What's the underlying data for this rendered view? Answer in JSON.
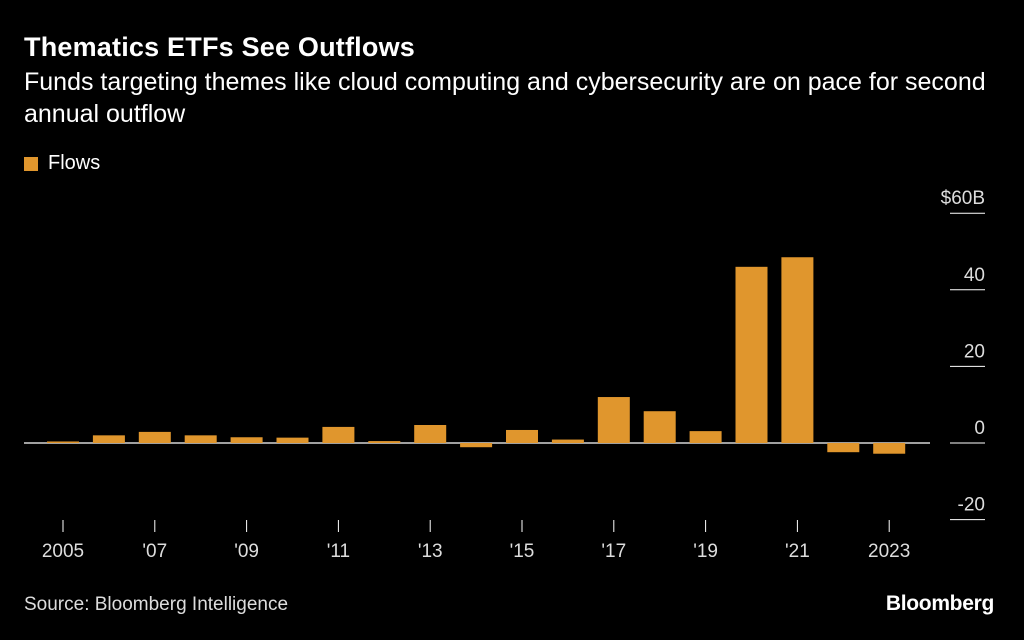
{
  "title": "Thematics ETFs See Outflows",
  "subtitle": "Funds targeting themes like cloud computing and cybersecurity are on pace for second annual outflow",
  "legend": {
    "label": "Flows",
    "color": "#e0962d"
  },
  "source": "Source: Bloomberg Intelligence",
  "brand": "Bloomberg",
  "chart_data": {
    "type": "bar",
    "title": "Thematics ETFs See Outflows",
    "xlabel": "",
    "ylabel": "",
    "ylim": [
      -20,
      60
    ],
    "y_ticks": [
      {
        "value": 60,
        "label": "$60B"
      },
      {
        "value": 40,
        "label": "40"
      },
      {
        "value": 20,
        "label": "20"
      },
      {
        "value": 0,
        "label": "0"
      },
      {
        "value": -20,
        "label": "-20"
      }
    ],
    "categories": [
      "2005",
      "2006",
      "2007",
      "2008",
      "2009",
      "2010",
      "2011",
      "2012",
      "2013",
      "2014",
      "2015",
      "2016",
      "2017",
      "2018",
      "2019",
      "2020",
      "2021",
      "2022",
      "2023"
    ],
    "x_tick_labels": [
      "2005",
      "'07",
      "'09",
      "'11",
      "'13",
      "'15",
      "'17",
      "'19",
      "'21",
      "2023"
    ],
    "x_tick_years": [
      "2005",
      "2007",
      "2009",
      "2011",
      "2013",
      "2015",
      "2017",
      "2019",
      "2021",
      "2023"
    ],
    "series": [
      {
        "name": "Flows",
        "values": [
          0.4,
          2.0,
          2.9,
          2.0,
          1.5,
          1.4,
          4.2,
          0.5,
          4.7,
          -1.1,
          3.4,
          0.9,
          12.0,
          8.3,
          3.1,
          46.0,
          48.5,
          -2.4,
          -2.8
        ]
      }
    ]
  }
}
